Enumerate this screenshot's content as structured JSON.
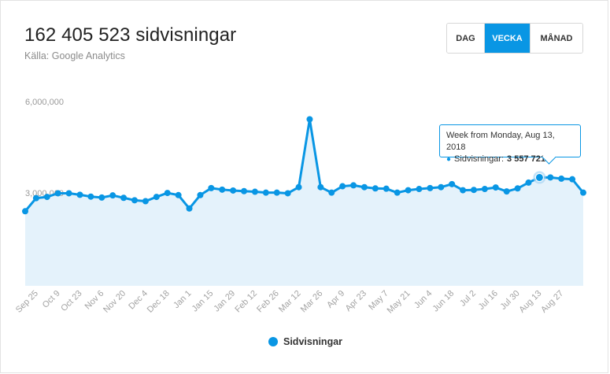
{
  "header": {
    "title": "162 405 523 sidvisningar",
    "subtitle": "Källa: Google Analytics"
  },
  "range_toggle": {
    "options": [
      "DAG",
      "VECKA",
      "MÅNAD"
    ],
    "selected": "VECKA"
  },
  "tooltip": {
    "heading": "Week from Monday, Aug 13, 2018",
    "series": "Sidvisningar:",
    "value": "3 557 721"
  },
  "legend": {
    "label": "Sidvisningar"
  },
  "colors": {
    "accent": "#0996e4",
    "area_fill": "#e4f2fb"
  },
  "chart_data": {
    "type": "area",
    "title": "162 405 523 sidvisningar",
    "xlabel": "",
    "ylabel": "",
    "ylim": [
      0,
      6000000
    ],
    "y_ticks": [
      "6,000,000",
      "3,000,000"
    ],
    "x_tick_labels": [
      "Sep 25",
      "Oct 9",
      "Oct 23",
      "Nov 6",
      "Nov 20",
      "Dec 4",
      "Dec 18",
      "Jan 1",
      "Jan 15",
      "Jan 29",
      "Feb 12",
      "Feb 26",
      "Mar 12",
      "Mar 26",
      "Apr 9",
      "Apr 23",
      "May 7",
      "May 21",
      "Jun 4",
      "Jun 18",
      "Jul 2",
      "Jul 16",
      "Jul 30",
      "Aug 13",
      "Aug 27"
    ],
    "legend_position": "bottom-center",
    "grid": false,
    "highlight_index": 47,
    "series": [
      {
        "name": "Sidvisningar",
        "values": [
          2450000,
          2880000,
          2920000,
          3040000,
          3040000,
          2990000,
          2930000,
          2900000,
          2970000,
          2890000,
          2810000,
          2780000,
          2920000,
          3050000,
          2980000,
          2540000,
          2980000,
          3210000,
          3160000,
          3130000,
          3110000,
          3090000,
          3060000,
          3060000,
          3040000,
          3240000,
          5470000,
          3240000,
          3060000,
          3270000,
          3300000,
          3240000,
          3200000,
          3190000,
          3060000,
          3140000,
          3180000,
          3210000,
          3240000,
          3340000,
          3140000,
          3150000,
          3180000,
          3230000,
          3100000,
          3200000,
          3390000,
          3557721,
          3560000,
          3520000,
          3500000,
          3060000
        ]
      }
    ]
  }
}
